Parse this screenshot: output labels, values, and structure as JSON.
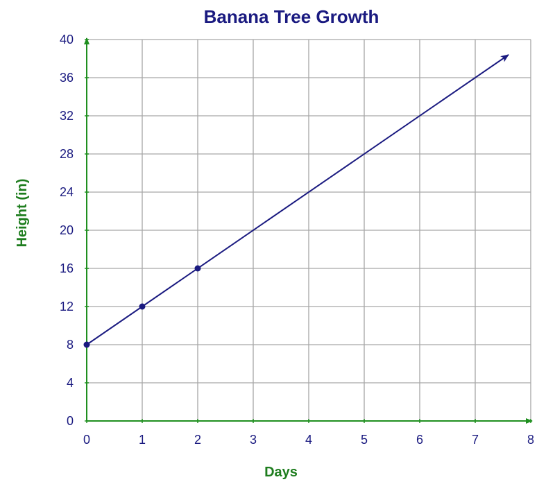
{
  "chart_data": {
    "type": "line",
    "title": "Banana Tree Growth",
    "xlabel": "Days",
    "ylabel": "Height (in)",
    "xlim": [
      0,
      8
    ],
    "ylim": [
      0,
      40
    ],
    "x_ticks": [
      0,
      1,
      2,
      3,
      4,
      5,
      6,
      7,
      8
    ],
    "y_ticks": [
      0,
      4,
      8,
      12,
      16,
      20,
      24,
      28,
      32,
      36,
      40
    ],
    "grid": true,
    "series": [
      {
        "points": [
          {
            "x": 0,
            "y": 8
          },
          {
            "x": 1,
            "y": 12
          },
          {
            "x": 2,
            "y": 16
          }
        ],
        "line": {
          "from": {
            "x": 0,
            "y": 8
          },
          "to": {
            "x": 7.6,
            "y": 38.4
          },
          "arrow_end": true
        }
      }
    ]
  },
  "colors": {
    "title": "#1a1a80",
    "axis_label": "#1e7d1e",
    "axis": "#1f8f1f",
    "tick_label": "#1a1a80",
    "grid": "#a6a6a6",
    "series": "#1a1a80"
  }
}
